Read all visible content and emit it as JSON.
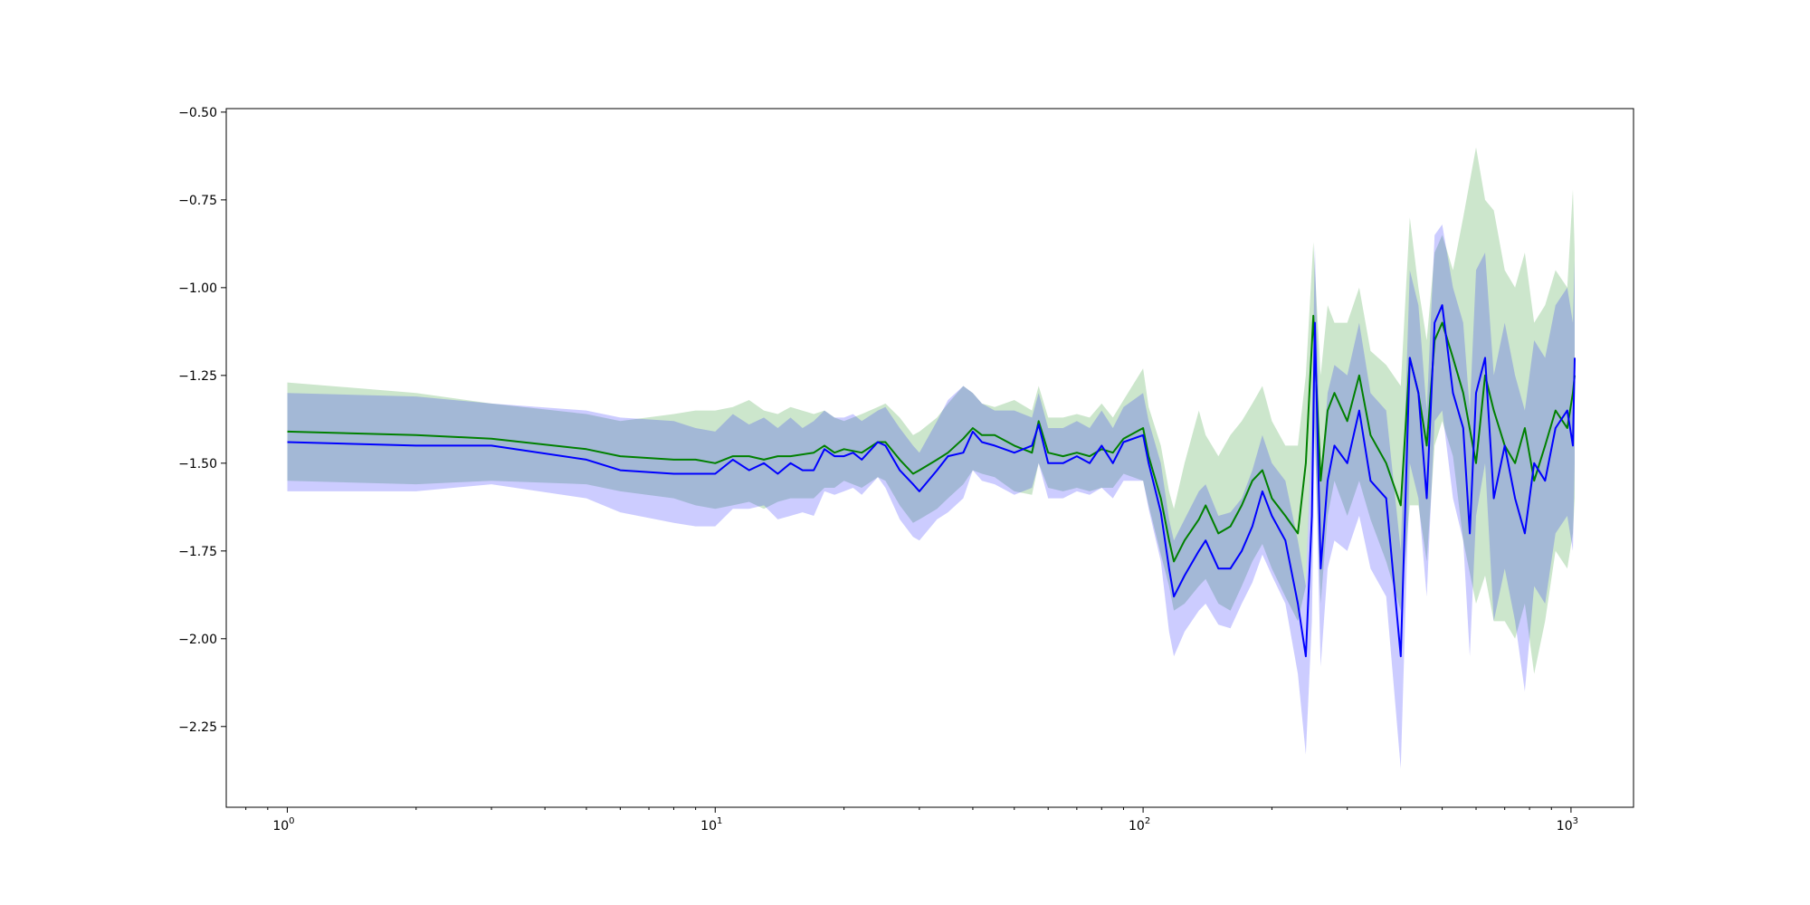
{
  "chart_data": {
    "type": "line",
    "title": "",
    "xlabel": "",
    "ylabel": "",
    "x_scale": "log",
    "xlim": [
      0.72,
      1400
    ],
    "ylim": [
      -2.48,
      -0.49
    ],
    "grid": false,
    "legend": "none",
    "x_ticks": [
      {
        "value": 1,
        "base": "10",
        "exp": "0"
      },
      {
        "value": 10,
        "base": "10",
        "exp": "1"
      },
      {
        "value": 100,
        "base": "10",
        "exp": "2"
      },
      {
        "value": 1000,
        "base": "10",
        "exp": "3"
      }
    ],
    "y_ticks": [
      {
        "value": -0.5,
        "label": "−0.50"
      },
      {
        "value": -0.75,
        "label": "−0.75"
      },
      {
        "value": -1.0,
        "label": "−1.00"
      },
      {
        "value": -1.25,
        "label": "−1.25"
      },
      {
        "value": -1.5,
        "label": "−1.50"
      },
      {
        "value": -1.75,
        "label": "−1.75"
      },
      {
        "value": -2.0,
        "label": "−2.00"
      },
      {
        "value": -2.25,
        "label": "−2.25"
      }
    ],
    "series": [
      {
        "color": "#008000",
        "band_color": "#008000",
        "band_opacity": 0.2,
        "x": [
          1,
          2,
          3,
          5,
          6,
          8,
          9,
          10,
          11,
          12,
          13,
          14,
          15,
          17,
          18,
          19,
          20,
          22,
          24,
          25,
          27,
          29,
          30,
          33,
          35,
          38,
          40,
          42,
          45,
          50,
          55,
          57,
          60,
          65,
          70,
          75,
          80,
          85,
          90,
          100,
          103,
          110,
          115,
          118,
          125,
          135,
          140,
          150,
          160,
          170,
          180,
          190,
          200,
          215,
          230,
          240,
          250,
          260,
          270,
          280,
          300,
          320,
          340,
          370,
          400,
          420,
          440,
          460,
          480,
          500,
          530,
          560,
          600,
          630,
          660,
          700,
          740,
          780,
          820,
          870,
          920,
          980,
          1010,
          1020
        ],
        "y": [
          -1.41,
          -1.42,
          -1.43,
          -1.46,
          -1.48,
          -1.49,
          -1.49,
          -1.5,
          -1.48,
          -1.48,
          -1.49,
          -1.48,
          -1.48,
          -1.47,
          -1.45,
          -1.47,
          -1.46,
          -1.47,
          -1.44,
          -1.44,
          -1.49,
          -1.53,
          -1.52,
          -1.49,
          -1.47,
          -1.43,
          -1.4,
          -1.42,
          -1.42,
          -1.45,
          -1.47,
          -1.38,
          -1.47,
          -1.48,
          -1.47,
          -1.48,
          -1.46,
          -1.47,
          -1.43,
          -1.4,
          -1.48,
          -1.6,
          -1.72,
          -1.78,
          -1.72,
          -1.66,
          -1.62,
          -1.7,
          -1.68,
          -1.62,
          -1.55,
          -1.52,
          -1.6,
          -1.65,
          -1.7,
          -1.5,
          -1.08,
          -1.55,
          -1.35,
          -1.3,
          -1.38,
          -1.25,
          -1.42,
          -1.5,
          -1.62,
          -1.2,
          -1.3,
          -1.45,
          -1.15,
          -1.1,
          -1.2,
          -1.3,
          -1.5,
          -1.25,
          -1.35,
          -1.45,
          -1.5,
          -1.4,
          -1.55,
          -1.45,
          -1.35,
          -1.4,
          -1.3,
          -1.25
        ],
        "upper": [
          -1.27,
          -1.3,
          -1.33,
          -1.36,
          -1.38,
          -1.36,
          -1.35,
          -1.35,
          -1.34,
          -1.32,
          -1.35,
          -1.36,
          -1.34,
          -1.36,
          -1.35,
          -1.37,
          -1.38,
          -1.36,
          -1.34,
          -1.33,
          -1.37,
          -1.42,
          -1.41,
          -1.37,
          -1.33,
          -1.28,
          -1.3,
          -1.33,
          -1.34,
          -1.32,
          -1.35,
          -1.28,
          -1.37,
          -1.37,
          -1.36,
          -1.37,
          -1.33,
          -1.37,
          -1.32,
          -1.23,
          -1.34,
          -1.45,
          -1.58,
          -1.63,
          -1.5,
          -1.35,
          -1.42,
          -1.48,
          -1.42,
          -1.38,
          -1.33,
          -1.28,
          -1.38,
          -1.45,
          -1.45,
          -1.25,
          -0.87,
          -1.25,
          -1.05,
          -1.1,
          -1.1,
          -1.0,
          -1.18,
          -1.22,
          -1.28,
          -0.8,
          -1.0,
          -1.15,
          -0.9,
          -0.85,
          -0.95,
          -0.8,
          -0.6,
          -0.75,
          -0.78,
          -0.95,
          -1.0,
          -0.9,
          -1.1,
          -1.05,
          -0.95,
          -1.0,
          -0.72,
          -0.9
        ],
        "lower": [
          -1.55,
          -1.56,
          -1.55,
          -1.56,
          -1.58,
          -1.6,
          -1.62,
          -1.63,
          -1.62,
          -1.61,
          -1.63,
          -1.61,
          -1.6,
          -1.6,
          -1.57,
          -1.57,
          -1.55,
          -1.57,
          -1.54,
          -1.55,
          -1.62,
          -1.67,
          -1.66,
          -1.63,
          -1.6,
          -1.56,
          -1.52,
          -1.53,
          -1.54,
          -1.58,
          -1.59,
          -1.5,
          -1.57,
          -1.58,
          -1.57,
          -1.58,
          -1.57,
          -1.57,
          -1.53,
          -1.55,
          -1.62,
          -1.76,
          -1.85,
          -1.92,
          -1.9,
          -1.85,
          -1.83,
          -1.9,
          -1.92,
          -1.85,
          -1.78,
          -1.73,
          -1.8,
          -1.88,
          -1.95,
          -1.85,
          -1.32,
          -1.9,
          -1.65,
          -1.55,
          -1.65,
          -1.55,
          -1.66,
          -1.78,
          -1.92,
          -1.62,
          -1.62,
          -1.78,
          -1.45,
          -1.38,
          -1.48,
          -1.72,
          -1.9,
          -1.82,
          -1.95,
          -1.95,
          -2.0,
          -1.9,
          -2.1,
          -1.95,
          -1.75,
          -1.8,
          -1.7,
          -1.6
        ]
      },
      {
        "color": "#0000ff",
        "band_color": "#0000ff",
        "band_opacity": 0.2,
        "x": [
          1,
          2,
          3,
          5,
          6,
          8,
          9,
          10,
          11,
          12,
          13,
          14,
          15,
          16,
          17,
          18,
          19,
          20,
          21,
          22,
          24,
          25,
          27,
          29,
          30,
          33,
          35,
          38,
          40,
          42,
          45,
          50,
          55,
          57,
          60,
          65,
          70,
          75,
          80,
          85,
          90,
          100,
          103,
          110,
          115,
          118,
          125,
          135,
          140,
          150,
          160,
          170,
          180,
          190,
          200,
          215,
          230,
          240,
          248,
          252,
          260,
          270,
          280,
          300,
          320,
          340,
          370,
          400,
          420,
          440,
          460,
          480,
          500,
          530,
          560,
          580,
          600,
          630,
          660,
          700,
          740,
          780,
          820,
          870,
          920,
          980,
          1010,
          1020
        ],
        "y": [
          -1.44,
          -1.45,
          -1.45,
          -1.49,
          -1.52,
          -1.53,
          -1.53,
          -1.53,
          -1.49,
          -1.52,
          -1.5,
          -1.53,
          -1.5,
          -1.52,
          -1.52,
          -1.46,
          -1.48,
          -1.48,
          -1.47,
          -1.49,
          -1.44,
          -1.45,
          -1.52,
          -1.56,
          -1.58,
          -1.52,
          -1.48,
          -1.47,
          -1.41,
          -1.44,
          -1.45,
          -1.47,
          -1.45,
          -1.39,
          -1.5,
          -1.5,
          -1.48,
          -1.5,
          -1.45,
          -1.5,
          -1.44,
          -1.42,
          -1.5,
          -1.64,
          -1.8,
          -1.88,
          -1.82,
          -1.75,
          -1.72,
          -1.8,
          -1.8,
          -1.75,
          -1.68,
          -1.58,
          -1.65,
          -1.72,
          -1.9,
          -2.05,
          -1.65,
          -1.1,
          -1.8,
          -1.55,
          -1.45,
          -1.5,
          -1.35,
          -1.55,
          -1.6,
          -2.05,
          -1.2,
          -1.3,
          -1.6,
          -1.1,
          -1.05,
          -1.3,
          -1.4,
          -1.7,
          -1.3,
          -1.2,
          -1.6,
          -1.45,
          -1.6,
          -1.7,
          -1.5,
          -1.55,
          -1.4,
          -1.35,
          -1.45,
          -1.2
        ],
        "upper": [
          -1.3,
          -1.31,
          -1.33,
          -1.35,
          -1.37,
          -1.38,
          -1.4,
          -1.41,
          -1.36,
          -1.39,
          -1.37,
          -1.4,
          -1.37,
          -1.4,
          -1.38,
          -1.35,
          -1.37,
          -1.37,
          -1.36,
          -1.38,
          -1.35,
          -1.34,
          -1.4,
          -1.45,
          -1.47,
          -1.38,
          -1.32,
          -1.28,
          -1.3,
          -1.33,
          -1.35,
          -1.35,
          -1.37,
          -1.3,
          -1.4,
          -1.4,
          -1.38,
          -1.4,
          -1.35,
          -1.4,
          -1.34,
          -1.3,
          -1.38,
          -1.5,
          -1.66,
          -1.72,
          -1.66,
          -1.58,
          -1.56,
          -1.65,
          -1.64,
          -1.6,
          -1.52,
          -1.42,
          -1.5,
          -1.55,
          -1.72,
          -1.85,
          -1.4,
          -0.88,
          -1.55,
          -1.3,
          -1.22,
          -1.25,
          -1.1,
          -1.3,
          -1.35,
          -1.75,
          -0.95,
          -1.05,
          -1.35,
          -0.85,
          -0.82,
          -1.0,
          -1.1,
          -1.35,
          -0.95,
          -0.9,
          -1.25,
          -1.1,
          -1.25,
          -1.35,
          -1.15,
          -1.2,
          -1.05,
          -1.0,
          -1.1,
          -0.92
        ],
        "lower": [
          -1.58,
          -1.58,
          -1.56,
          -1.6,
          -1.64,
          -1.67,
          -1.68,
          -1.68,
          -1.63,
          -1.63,
          -1.62,
          -1.66,
          -1.65,
          -1.64,
          -1.65,
          -1.58,
          -1.59,
          -1.58,
          -1.57,
          -1.59,
          -1.54,
          -1.57,
          -1.66,
          -1.71,
          -1.72,
          -1.66,
          -1.64,
          -1.6,
          -1.52,
          -1.55,
          -1.56,
          -1.59,
          -1.57,
          -1.5,
          -1.6,
          -1.6,
          -1.58,
          -1.59,
          -1.57,
          -1.6,
          -1.55,
          -1.55,
          -1.63,
          -1.78,
          -1.98,
          -2.05,
          -1.98,
          -1.92,
          -1.9,
          -1.96,
          -1.97,
          -1.9,
          -1.84,
          -1.76,
          -1.82,
          -1.9,
          -2.1,
          -2.33,
          -1.95,
          -1.4,
          -2.08,
          -1.8,
          -1.72,
          -1.75,
          -1.65,
          -1.8,
          -1.88,
          -2.37,
          -1.5,
          -1.6,
          -1.88,
          -1.38,
          -1.35,
          -1.6,
          -1.72,
          -2.05,
          -1.65,
          -1.5,
          -1.95,
          -1.8,
          -1.95,
          -2.15,
          -1.85,
          -1.9,
          -1.7,
          -1.65,
          -1.75,
          -1.5
        ]
      }
    ]
  }
}
